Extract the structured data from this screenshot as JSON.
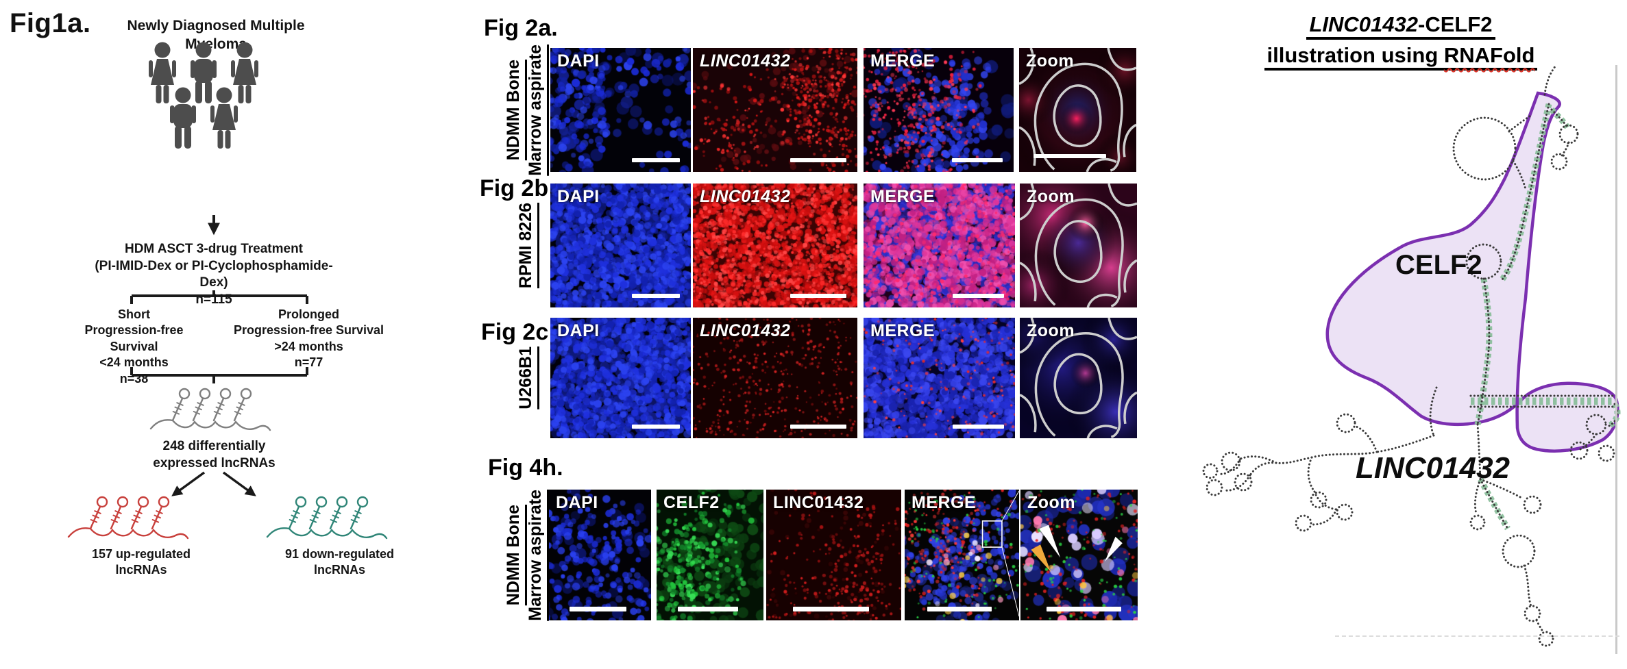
{
  "fig1a": {
    "label": "Fig1a.",
    "title": [
      "Newly Diagnosed Multiple",
      "Myeloma"
    ],
    "treatment": [
      "HDM ASCT 3-drug Treatment",
      "(PI-IMID-Dex or PI-Cyclophosphamide-Dex)",
      "n=115"
    ],
    "arm_short": [
      "Short",
      "Progression-free Survival",
      "<24 months",
      "n=38"
    ],
    "arm_prolonged": [
      "Prolonged",
      "Progression-free Survival",
      ">24 months",
      "n=77"
    ],
    "diff": [
      "248 differentially",
      "expressed lncRNAs"
    ],
    "up": [
      "157 up-regulated",
      "lncRNAs"
    ],
    "down": [
      "91 down-regulated",
      "lncRNAs"
    ],
    "colors": {
      "people": "#4d4d4d",
      "up_lncrna": "#c8403c",
      "down_lncrna": "#2f8577",
      "neutral_lncrna": "#7f7f7f"
    }
  },
  "microscopy": {
    "rows": [
      {
        "fig": "Fig 2a.",
        "side": [
          "NDMM Bone",
          "Marrow aspirate"
        ],
        "panels": [
          {
            "label": "DAPI",
            "italic": false,
            "tex": "nuclei-sparse",
            "color": "#2a3ae8"
          },
          {
            "label": "LINC01432",
            "italic": true,
            "tex": "red-sparse",
            "color": "#e81f1f"
          },
          {
            "label": "MERGE",
            "italic": false,
            "tex": "merge-sparse",
            "color": "#b02ce8"
          },
          {
            "label": "Zoom",
            "italic": false,
            "tex": "zoom-red",
            "color": "#cdcdcd"
          }
        ]
      },
      {
        "fig": "Fig 2b",
        "side": [
          "RPMI 8226"
        ],
        "panels": [
          {
            "label": "DAPI",
            "italic": false,
            "tex": "nuclei-dense",
            "color": "#2a3ae8"
          },
          {
            "label": "LINC01432",
            "italic": true,
            "tex": "red-dense",
            "color": "#ff2c2c"
          },
          {
            "label": "MERGE",
            "italic": false,
            "tex": "merge-pink",
            "color": "#e0359a"
          },
          {
            "label": "Zoom",
            "italic": false,
            "tex": "zoom-pink",
            "color": "#cdcdcd"
          }
        ]
      },
      {
        "fig": "Fig 2c",
        "side": [
          "U266B1"
        ],
        "panels": [
          {
            "label": "DAPI",
            "italic": false,
            "tex": "nuclei-dense",
            "color": "#2a3ae8"
          },
          {
            "label": "LINC01432",
            "italic": true,
            "tex": "red-dim",
            "color": "#c21d1d"
          },
          {
            "label": "MERGE",
            "italic": false,
            "tex": "merge-blue",
            "color": "#3a46ee"
          },
          {
            "label": "Zoom",
            "italic": false,
            "tex": "zoom-blue",
            "color": "#cdcdcd"
          }
        ]
      },
      {
        "fig": "Fig 4h.",
        "side": [
          "NDMM Bone",
          "Marrow aspirate"
        ],
        "panels": [
          {
            "label": "DAPI",
            "italic": false,
            "tex": "nuclei-sparse2",
            "color": "#2a3ae8"
          },
          {
            "label": "CELF2",
            "italic": false,
            "tex": "green-cells",
            "color": "#27c43a"
          },
          {
            "label": "LINC01432",
            "italic": false,
            "tex": "red-dim2",
            "color": "#d61e1e"
          },
          {
            "label": "MERGE",
            "italic": false,
            "tex": "merge-4h",
            "color": "#efe8ff"
          },
          {
            "label": "Zoom",
            "italic": false,
            "tex": "zoom-4h",
            "color": "#f0a93c"
          }
        ]
      }
    ]
  },
  "rnafold": {
    "title_gene": "LINC01432",
    "title_suffix": "-CELF2",
    "title_line2_prefix": "illustration using ",
    "title_rnafold": "RNAFold",
    "protein_label": "CELF2",
    "gene_label": "LINC01432",
    "colors": {
      "region_fill": "#e9ddf3",
      "region_stroke": "#7b2fb0",
      "pairing": "#8cbf9c",
      "strand": "#3a3a3a"
    }
  }
}
